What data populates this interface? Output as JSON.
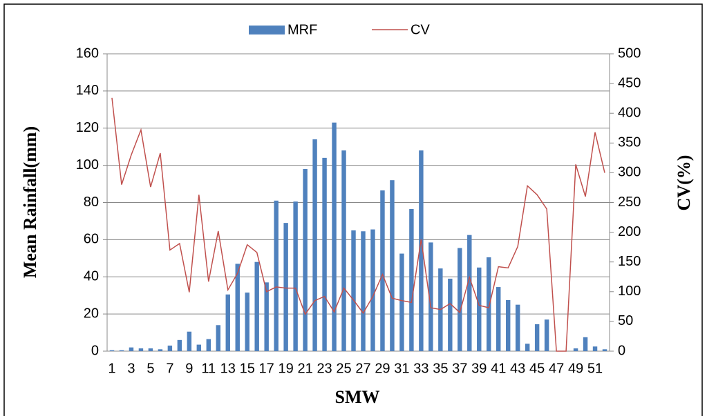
{
  "chart_data": {
    "type": "bar",
    "x_label": "SMW",
    "y_label": "Mean Rainfall(mm)",
    "y2_label": "CV(%)",
    "categories": [
      "1",
      null,
      "3",
      null,
      "5",
      null,
      "7",
      null,
      "9",
      null,
      "11",
      null,
      "13",
      null,
      "15",
      null,
      "17",
      null,
      "19",
      null,
      "21",
      null,
      "23",
      null,
      "25",
      null,
      "27",
      null,
      "29",
      null,
      "31",
      null,
      "33",
      null,
      "35",
      null,
      "37",
      null,
      "39",
      null,
      "41",
      null,
      "43",
      null,
      "45",
      null,
      "47",
      null,
      "49",
      null,
      "51",
      null
    ],
    "series": [
      {
        "name": "MRF",
        "type": "bar",
        "color": "#4f81bd",
        "values": [
          0.5,
          0.5,
          2,
          1.5,
          1.5,
          1,
          3,
          6,
          10.5,
          3.5,
          6.5,
          14,
          30.5,
          47,
          31.5,
          48,
          37,
          81,
          69,
          80.5,
          98,
          114,
          104,
          123,
          108,
          65,
          64.5,
          65.5,
          86.5,
          92,
          52.5,
          76.5,
          108,
          58.5,
          44.5,
          39,
          55.5,
          62.5,
          45,
          50.5,
          34.5,
          27.5,
          25,
          4,
          14.5,
          17,
          0,
          0,
          1.5,
          7.5,
          2.5,
          1
        ]
      },
      {
        "name": "CV",
        "type": "line",
        "axis": "y2",
        "color": "#c0504d",
        "values": [
          426,
          280,
          330,
          372,
          276,
          333,
          170,
          181,
          99,
          263,
          117,
          202,
          103,
          131,
          179,
          166,
          100,
          108,
          106,
          106,
          62,
          85,
          92,
          66,
          106,
          86,
          64,
          92,
          129,
          89,
          85,
          82,
          188,
          73,
          70,
          80,
          65,
          124,
          77,
          73,
          142,
          140,
          176,
          278,
          263,
          239,
          0,
          0,
          314,
          260,
          368,
          300
        ]
      }
    ],
    "ylim": [
      0,
      160
    ],
    "yticks": [
      0,
      20,
      40,
      60,
      80,
      100,
      120,
      140,
      160
    ],
    "y2lim": [
      0,
      500
    ],
    "y2ticks": [
      0,
      50,
      100,
      150,
      200,
      250,
      300,
      350,
      400,
      450,
      500
    ],
    "grid": true,
    "legend": "top"
  }
}
